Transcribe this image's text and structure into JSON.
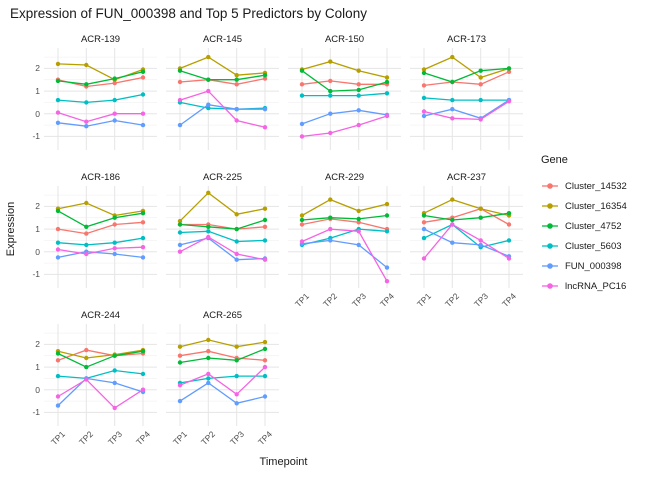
{
  "title": "Expression of FUN_000398 and Top 5 Predictors by Colony",
  "chart_data": {
    "type": "line",
    "title": "Expression of FUN_000398 and Top 5 Predictors by Colony",
    "xlabel": "Timepoint",
    "ylabel": "Expression",
    "legend_title": "Gene",
    "x_ticks": [
      "TP1",
      "TP2",
      "TP3",
      "TP4"
    ],
    "y_ticks": [
      2,
      1,
      0,
      -1
    ],
    "y_minor_ticks": [
      2.5,
      1.5,
      0.5,
      -0.5
    ],
    "ylim": [
      -1.6,
      2.9
    ],
    "grid": true,
    "legend_position": "right",
    "series": [
      {
        "name": "Cluster_14532",
        "color": "#F8766D"
      },
      {
        "name": "Cluster_16354",
        "color": "#B79F00"
      },
      {
        "name": "Cluster_4752",
        "color": "#00BA38"
      },
      {
        "name": "Cluster_5603",
        "color": "#00BFC4"
      },
      {
        "name": "FUN_000398",
        "color": "#619CFF"
      },
      {
        "name": "lncRNA_PC16",
        "color": "#F564E3"
      }
    ],
    "facets": [
      {
        "name": "ACR-139",
        "values": [
          [
            1.5,
            1.2,
            1.35,
            1.6
          ],
          [
            2.2,
            2.15,
            1.5,
            1.95
          ],
          [
            1.45,
            1.3,
            1.55,
            1.85
          ],
          [
            0.6,
            0.5,
            0.6,
            0.85
          ],
          [
            -0.4,
            -0.55,
            -0.3,
            -0.5
          ],
          [
            0.05,
            -0.35,
            0.0,
            0.0
          ]
        ]
      },
      {
        "name": "ACR-145",
        "values": [
          [
            1.4,
            1.5,
            1.3,
            1.55
          ],
          [
            2.0,
            2.5,
            1.7,
            1.8
          ],
          [
            1.9,
            1.5,
            1.5,
            1.7
          ],
          [
            0.5,
            0.25,
            0.2,
            0.25
          ],
          [
            -0.5,
            0.4,
            0.2,
            0.2
          ],
          [
            0.6,
            1.0,
            -0.3,
            -0.6
          ]
        ]
      },
      {
        "name": "ACR-150",
        "values": [
          [
            1.3,
            1.45,
            1.3,
            1.3
          ],
          [
            1.95,
            2.3,
            1.9,
            1.6
          ],
          [
            1.9,
            1.0,
            1.05,
            1.4
          ],
          [
            0.8,
            0.8,
            0.8,
            0.9
          ],
          [
            -0.45,
            0.0,
            0.15,
            -0.05
          ],
          [
            -1.0,
            -0.85,
            -0.5,
            -0.1
          ]
        ]
      },
      {
        "name": "ACR-173",
        "values": [
          [
            1.25,
            1.4,
            1.3,
            1.85
          ],
          [
            1.95,
            2.5,
            1.6,
            2.0
          ],
          [
            1.8,
            1.4,
            1.9,
            2.0
          ],
          [
            0.7,
            0.6,
            0.6,
            0.6
          ],
          [
            -0.1,
            0.2,
            -0.2,
            0.6
          ],
          [
            0.1,
            -0.2,
            -0.25,
            0.55
          ]
        ]
      },
      {
        "name": "ACR-186",
        "values": [
          [
            1.0,
            0.8,
            1.2,
            1.3
          ],
          [
            1.9,
            2.15,
            1.6,
            1.8
          ],
          [
            1.8,
            1.1,
            1.5,
            1.7
          ],
          [
            0.4,
            0.3,
            0.4,
            0.6
          ],
          [
            -0.25,
            0.0,
            -0.1,
            -0.25
          ],
          [
            0.1,
            -0.1,
            0.15,
            0.2
          ]
        ]
      },
      {
        "name": "ACR-225",
        "values": [
          [
            1.2,
            1.2,
            1.0,
            1.1
          ],
          [
            1.35,
            2.6,
            1.65,
            1.9
          ],
          [
            1.2,
            1.1,
            1.0,
            1.4
          ],
          [
            0.85,
            0.9,
            0.45,
            0.5
          ],
          [
            0.3,
            0.6,
            -0.35,
            -0.3
          ],
          [
            0.0,
            0.65,
            -0.1,
            -0.35
          ]
        ]
      },
      {
        "name": "ACR-229",
        "values": [
          [
            1.2,
            1.45,
            1.3,
            1.0
          ],
          [
            1.6,
            2.3,
            1.8,
            2.1
          ],
          [
            1.4,
            1.5,
            1.45,
            1.6
          ],
          [
            0.3,
            0.6,
            1.0,
            0.9
          ],
          [
            0.35,
            0.5,
            0.3,
            -0.7
          ],
          [
            0.45,
            1.0,
            0.9,
            -1.3
          ]
        ]
      },
      {
        "name": "ACR-237",
        "values": [
          [
            1.3,
            1.5,
            1.9,
            1.2
          ],
          [
            1.7,
            2.3,
            1.9,
            1.6
          ],
          [
            1.6,
            1.4,
            1.5,
            1.7
          ],
          [
            0.6,
            1.2,
            0.2,
            0.5
          ],
          [
            1.0,
            0.4,
            0.3,
            -0.2
          ],
          [
            -0.3,
            1.2,
            0.5,
            -0.3
          ]
        ]
      },
      {
        "name": "ACR-244",
        "values": [
          [
            1.3,
            1.75,
            1.5,
            1.6
          ],
          [
            1.7,
            1.4,
            1.55,
            1.75
          ],
          [
            1.6,
            1.0,
            1.5,
            1.7
          ],
          [
            0.6,
            0.5,
            0.85,
            0.7
          ],
          [
            -0.7,
            0.5,
            0.3,
            -0.1
          ],
          [
            -0.3,
            0.45,
            -0.8,
            0.0
          ]
        ]
      },
      {
        "name": "ACR-265",
        "values": [
          [
            1.5,
            1.7,
            1.4,
            1.3
          ],
          [
            1.9,
            2.2,
            1.9,
            2.1
          ],
          [
            1.2,
            1.4,
            1.3,
            1.8
          ],
          [
            0.3,
            0.5,
            0.6,
            0.6
          ],
          [
            -0.5,
            0.3,
            -0.6,
            -0.3
          ],
          [
            0.2,
            0.7,
            -0.2,
            1.0
          ]
        ]
      }
    ]
  }
}
